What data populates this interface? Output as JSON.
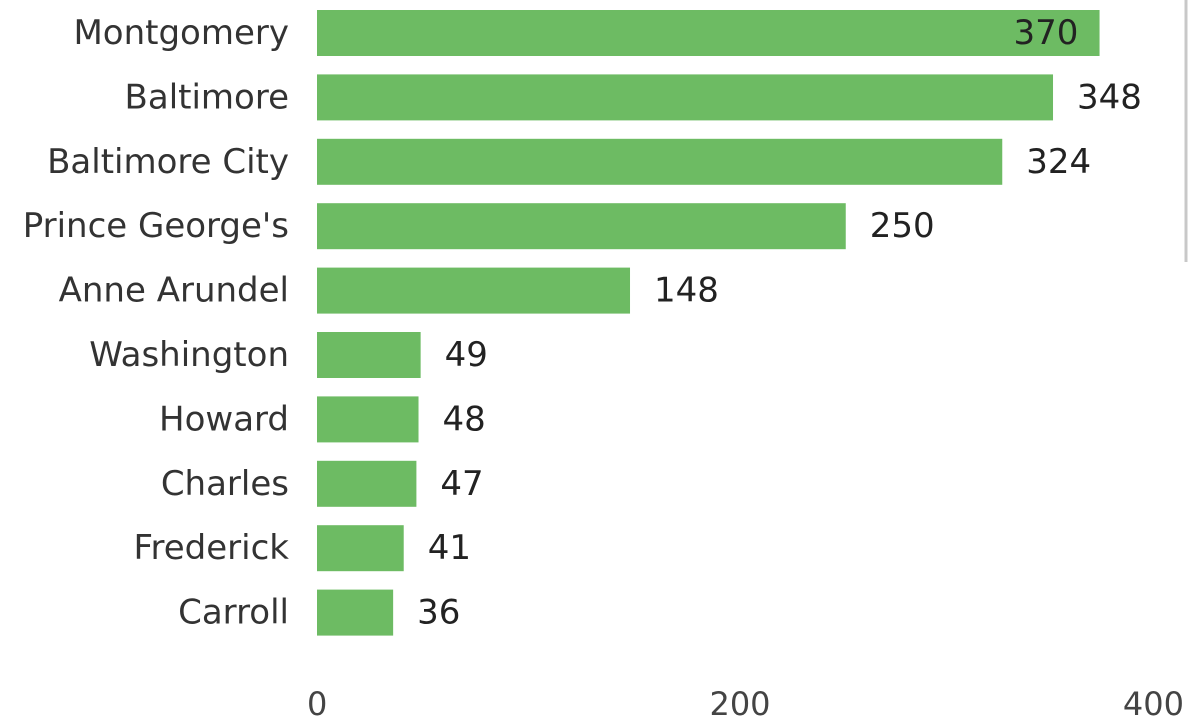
{
  "chart_data": {
    "type": "bar",
    "orientation": "horizontal",
    "title": "",
    "xlabel": "",
    "ylabel": "",
    "categories": [
      "Montgomery",
      "Baltimore",
      "Baltimore City",
      "Prince George's",
      "Anne Arundel",
      "Washington",
      "Howard",
      "Charles",
      "Frederick",
      "Carroll"
    ],
    "values": [
      370,
      348,
      324,
      250,
      148,
      49,
      48,
      47,
      41,
      36
    ],
    "data_labels": [
      "370",
      "348",
      "324",
      "250",
      "148",
      "49",
      "48",
      "47",
      "41",
      "36"
    ],
    "xlim": [
      0,
      400
    ],
    "x_ticks": [
      0,
      200,
      400
    ],
    "x_tick_labels": [
      "0",
      "200",
      "400"
    ],
    "grid": false,
    "legend": "none",
    "bar_color": "#6dbb63"
  }
}
